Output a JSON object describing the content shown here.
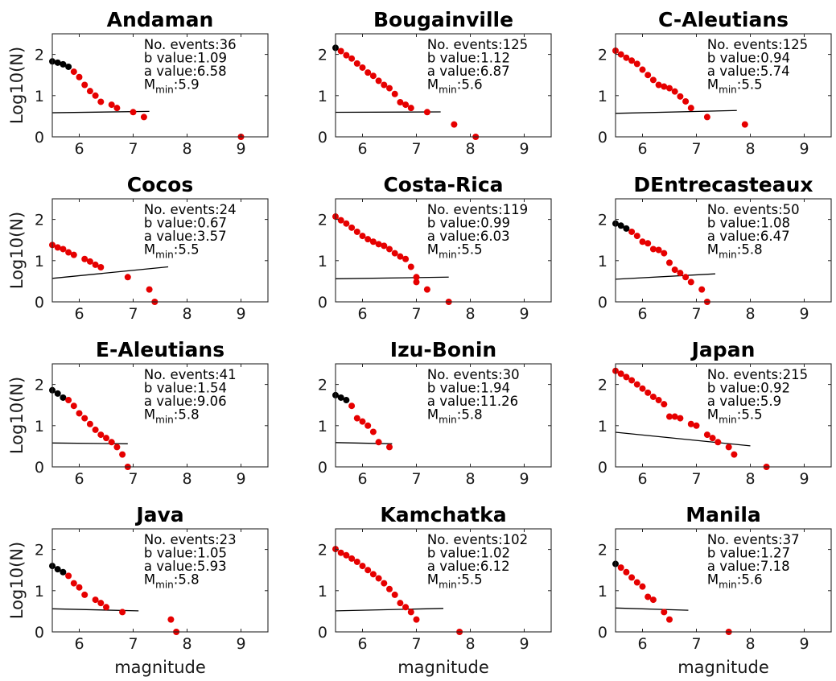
{
  "figure": {
    "x_axis_label": "magnitude",
    "y_axis_label": "Log10(N)",
    "labels": {
      "events": "No. events:",
      "b": "b value:",
      "a": "a value:",
      "mmin_main": "M",
      "mmin_sub": "min",
      "mmin_sep": ":"
    },
    "colors": {
      "below_mmin": "#000000",
      "above_mmin": "#e60000",
      "fit": "#000000"
    }
  },
  "chart_data": [
    {
      "type": "scatter",
      "title": "Andaman",
      "n_events": "36",
      "b_value": "1.09",
      "a_value": "6.58",
      "mmin": "5.9",
      "xlim": [
        5.5,
        9.5
      ],
      "ylim": [
        0,
        2.5
      ],
      "xticks": [
        6,
        7,
        8,
        9
      ],
      "yticks": [
        0,
        1,
        2
      ],
      "points_below_mmin": [
        [
          5.5,
          1.83
        ],
        [
          5.6,
          1.8
        ],
        [
          5.7,
          1.76
        ],
        [
          5.8,
          1.7
        ]
      ],
      "points": [
        [
          5.9,
          1.58
        ],
        [
          6.0,
          1.45
        ],
        [
          6.1,
          1.26
        ],
        [
          6.2,
          1.11
        ],
        [
          6.3,
          1.0
        ],
        [
          6.4,
          0.85
        ],
        [
          6.6,
          0.78
        ],
        [
          6.7,
          0.7
        ],
        [
          7.0,
          0.6
        ],
        [
          7.2,
          0.48
        ],
        [
          9.0,
          0.0
        ]
      ],
      "fit_line": [
        [
          5.5,
          0.585
        ],
        [
          7.3,
          0.618
        ]
      ]
    },
    {
      "type": "scatter",
      "title": "Bougainville",
      "n_events": "125",
      "b_value": "1.12",
      "a_value": "6.87",
      "mmin": "5.6",
      "xlim": [
        5.5,
        9.5
      ],
      "ylim": [
        0,
        2.5
      ],
      "xticks": [
        6,
        7,
        8,
        9
      ],
      "yticks": [
        0,
        1,
        2
      ],
      "points_below_mmin": [
        [
          5.5,
          2.16
        ]
      ],
      "points": [
        [
          5.6,
          2.08
        ],
        [
          5.7,
          1.98
        ],
        [
          5.8,
          1.9
        ],
        [
          5.9,
          1.78
        ],
        [
          6.0,
          1.68
        ],
        [
          6.1,
          1.56
        ],
        [
          6.2,
          1.48
        ],
        [
          6.3,
          1.36
        ],
        [
          6.4,
          1.26
        ],
        [
          6.5,
          1.18
        ],
        [
          6.6,
          1.04
        ],
        [
          6.7,
          0.84
        ],
        [
          6.8,
          0.78
        ],
        [
          6.9,
          0.7
        ],
        [
          7.2,
          0.6
        ],
        [
          7.7,
          0.3
        ],
        [
          8.1,
          0.0
        ]
      ],
      "fit_line": [
        [
          5.5,
          0.595
        ],
        [
          7.45,
          0.605
        ]
      ]
    },
    {
      "type": "scatter",
      "title": "C-Aleutians",
      "n_events": "125",
      "b_value": "0.94",
      "a_value": "5.74",
      "mmin": "5.5",
      "xlim": [
        5.5,
        9.5
      ],
      "ylim": [
        0,
        2.5
      ],
      "xticks": [
        6,
        7,
        8,
        9
      ],
      "yticks": [
        0,
        1,
        2
      ],
      "points_below_mmin": [],
      "points": [
        [
          5.5,
          2.09
        ],
        [
          5.6,
          2.0
        ],
        [
          5.7,
          1.92
        ],
        [
          5.8,
          1.85
        ],
        [
          5.9,
          1.77
        ],
        [
          6.0,
          1.63
        ],
        [
          6.1,
          1.5
        ],
        [
          6.2,
          1.38
        ],
        [
          6.3,
          1.26
        ],
        [
          6.4,
          1.22
        ],
        [
          6.5,
          1.18
        ],
        [
          6.6,
          1.1
        ],
        [
          6.7,
          0.98
        ],
        [
          6.8,
          0.86
        ],
        [
          6.9,
          0.7
        ],
        [
          7.2,
          0.48
        ],
        [
          7.9,
          0.3
        ]
      ],
      "fit_line": [
        [
          5.5,
          0.57
        ],
        [
          7.75,
          0.64
        ]
      ]
    },
    {
      "type": "scatter",
      "title": "Cocos",
      "n_events": "24",
      "b_value": "0.67",
      "a_value": "3.57",
      "mmin": "5.5",
      "xlim": [
        5.5,
        9.5
      ],
      "ylim": [
        0,
        2.5
      ],
      "xticks": [
        6,
        7,
        8,
        9
      ],
      "yticks": [
        0,
        1,
        2
      ],
      "points_below_mmin": [],
      "points": [
        [
          5.5,
          1.38
        ],
        [
          5.6,
          1.32
        ],
        [
          5.7,
          1.28
        ],
        [
          5.8,
          1.2
        ],
        [
          5.9,
          1.14
        ],
        [
          6.1,
          1.04
        ],
        [
          6.2,
          0.98
        ],
        [
          6.3,
          0.9
        ],
        [
          6.4,
          0.84
        ],
        [
          6.9,
          0.6
        ],
        [
          7.3,
          0.3
        ],
        [
          7.4,
          0.0
        ]
      ],
      "fit_line": [
        [
          5.5,
          0.57
        ],
        [
          7.65,
          0.85
        ]
      ]
    },
    {
      "type": "scatter",
      "title": "Costa-Rica",
      "n_events": "119",
      "b_value": "0.99",
      "a_value": "6.03",
      "mmin": "5.5",
      "xlim": [
        5.5,
        9.5
      ],
      "ylim": [
        0,
        2.5
      ],
      "xticks": [
        6,
        7,
        8,
        9
      ],
      "yticks": [
        0,
        1,
        2
      ],
      "points_below_mmin": [],
      "points": [
        [
          5.5,
          2.07
        ],
        [
          5.6,
          1.98
        ],
        [
          5.7,
          1.9
        ],
        [
          5.8,
          1.8
        ],
        [
          5.9,
          1.7
        ],
        [
          6.0,
          1.6
        ],
        [
          6.1,
          1.52
        ],
        [
          6.2,
          1.46
        ],
        [
          6.3,
          1.4
        ],
        [
          6.4,
          1.36
        ],
        [
          6.5,
          1.28
        ],
        [
          6.6,
          1.18
        ],
        [
          6.7,
          1.1
        ],
        [
          6.8,
          1.04
        ],
        [
          6.9,
          0.85
        ],
        [
          7.0,
          0.6
        ],
        [
          7.0,
          0.48
        ],
        [
          7.2,
          0.3
        ],
        [
          7.6,
          0.0
        ]
      ],
      "fit_line": [
        [
          5.5,
          0.56
        ],
        [
          7.6,
          0.6
        ]
      ]
    },
    {
      "type": "scatter",
      "title": "DEntrecasteaux",
      "n_events": "50",
      "b_value": "1.08",
      "a_value": "6.47",
      "mmin": "5.8",
      "xlim": [
        5.5,
        9.5
      ],
      "ylim": [
        0,
        2.5
      ],
      "xticks": [
        6,
        7,
        8,
        9
      ],
      "yticks": [
        0,
        1,
        2
      ],
      "points_below_mmin": [
        [
          5.5,
          1.9
        ],
        [
          5.6,
          1.85
        ],
        [
          5.7,
          1.78
        ]
      ],
      "points": [
        [
          5.8,
          1.7
        ],
        [
          5.9,
          1.6
        ],
        [
          6.0,
          1.46
        ],
        [
          6.1,
          1.42
        ],
        [
          6.2,
          1.28
        ],
        [
          6.3,
          1.26
        ],
        [
          6.4,
          1.18
        ],
        [
          6.5,
          0.95
        ],
        [
          6.6,
          0.78
        ],
        [
          6.7,
          0.7
        ],
        [
          6.8,
          0.6
        ],
        [
          6.9,
          0.48
        ],
        [
          7.1,
          0.3
        ],
        [
          7.2,
          0.0
        ]
      ],
      "fit_line": [
        [
          5.5,
          0.55
        ],
        [
          7.35,
          0.68
        ]
      ]
    },
    {
      "type": "scatter",
      "title": "E-Aleutians",
      "n_events": "41",
      "b_value": "1.54",
      "a_value": "9.06",
      "mmin": "5.8",
      "xlim": [
        5.5,
        9.5
      ],
      "ylim": [
        0,
        2.5
      ],
      "xticks": [
        6,
        7,
        8,
        9
      ],
      "yticks": [
        0,
        1,
        2
      ],
      "points_below_mmin": [
        [
          5.5,
          1.86
        ],
        [
          5.6,
          1.78
        ],
        [
          5.7,
          1.68
        ]
      ],
      "points": [
        [
          5.8,
          1.62
        ],
        [
          5.9,
          1.48
        ],
        [
          6.0,
          1.3
        ],
        [
          6.1,
          1.18
        ],
        [
          6.2,
          1.04
        ],
        [
          6.3,
          0.9
        ],
        [
          6.4,
          0.78
        ],
        [
          6.5,
          0.7
        ],
        [
          6.6,
          0.6
        ],
        [
          6.7,
          0.48
        ],
        [
          6.8,
          0.3
        ],
        [
          6.9,
          0.0
        ]
      ],
      "fit_line": [
        [
          5.5,
          0.58
        ],
        [
          6.9,
          0.56
        ]
      ]
    },
    {
      "type": "scatter",
      "title": "Izu-Bonin",
      "n_events": "30",
      "b_value": "1.94",
      "a_value": "11.26",
      "mmin": "5.8",
      "xlim": [
        5.5,
        9.5
      ],
      "ylim": [
        0,
        2.5
      ],
      "xticks": [
        6,
        7,
        8,
        9
      ],
      "yticks": [
        0,
        1,
        2
      ],
      "points_below_mmin": [
        [
          5.5,
          1.74
        ],
        [
          5.6,
          1.68
        ],
        [
          5.7,
          1.62
        ]
      ],
      "points": [
        [
          5.8,
          1.48
        ],
        [
          5.9,
          1.18
        ],
        [
          6.0,
          1.1
        ],
        [
          6.1,
          1.0
        ],
        [
          6.2,
          0.85
        ],
        [
          6.3,
          0.6
        ],
        [
          6.5,
          0.48
        ]
      ],
      "fit_line": [
        [
          5.5,
          0.59
        ],
        [
          6.55,
          0.56
        ]
      ]
    },
    {
      "type": "scatter",
      "title": "Japan",
      "n_events": "215",
      "b_value": "0.92",
      "a_value": "5.9",
      "mmin": "5.5",
      "xlim": [
        5.5,
        9.5
      ],
      "ylim": [
        0,
        2.5
      ],
      "xticks": [
        6,
        7,
        8,
        9
      ],
      "yticks": [
        0,
        1,
        2
      ],
      "points_below_mmin": [],
      "points": [
        [
          5.5,
          2.33
        ],
        [
          5.6,
          2.26
        ],
        [
          5.7,
          2.18
        ],
        [
          5.8,
          2.1
        ],
        [
          5.9,
          2.0
        ],
        [
          6.0,
          1.9
        ],
        [
          6.1,
          1.8
        ],
        [
          6.2,
          1.7
        ],
        [
          6.3,
          1.62
        ],
        [
          6.4,
          1.52
        ],
        [
          6.5,
          1.22
        ],
        [
          6.6,
          1.22
        ],
        [
          6.7,
          1.18
        ],
        [
          6.9,
          1.04
        ],
        [
          7.0,
          1.0
        ],
        [
          7.2,
          0.78
        ],
        [
          7.3,
          0.7
        ],
        [
          7.4,
          0.6
        ],
        [
          7.6,
          0.48
        ],
        [
          7.7,
          0.3
        ],
        [
          8.3,
          0.0
        ]
      ],
      "fit_line": [
        [
          5.5,
          0.84
        ],
        [
          8.0,
          0.51
        ]
      ]
    },
    {
      "type": "scatter",
      "title": "Java",
      "n_events": "23",
      "b_value": "1.05",
      "a_value": "5.93",
      "mmin": "5.8",
      "xlim": [
        5.5,
        9.5
      ],
      "ylim": [
        0,
        2.5
      ],
      "xticks": [
        6,
        7,
        8,
        9
      ],
      "yticks": [
        0,
        1,
        2
      ],
      "points_below_mmin": [
        [
          5.5,
          1.6
        ],
        [
          5.6,
          1.52
        ],
        [
          5.7,
          1.45
        ]
      ],
      "points": [
        [
          5.8,
          1.36
        ],
        [
          5.9,
          1.18
        ],
        [
          6.0,
          1.08
        ],
        [
          6.1,
          0.9
        ],
        [
          6.3,
          0.78
        ],
        [
          6.4,
          0.7
        ],
        [
          6.5,
          0.6
        ],
        [
          6.8,
          0.48
        ],
        [
          7.7,
          0.3
        ],
        [
          7.8,
          0.0
        ]
      ],
      "fit_line": [
        [
          5.5,
          0.56
        ],
        [
          7.1,
          0.51
        ]
      ]
    },
    {
      "type": "scatter",
      "title": "Kamchatka",
      "n_events": "102",
      "b_value": "1.02",
      "a_value": "6.12",
      "mmin": "5.5",
      "xlim": [
        5.5,
        9.5
      ],
      "ylim": [
        0,
        2.5
      ],
      "xticks": [
        6,
        7,
        8,
        9
      ],
      "yticks": [
        0,
        1,
        2
      ],
      "points_below_mmin": [],
      "points": [
        [
          5.5,
          2.01
        ],
        [
          5.6,
          1.92
        ],
        [
          5.7,
          1.86
        ],
        [
          5.8,
          1.78
        ],
        [
          5.9,
          1.7
        ],
        [
          6.0,
          1.6
        ],
        [
          6.1,
          1.5
        ],
        [
          6.2,
          1.4
        ],
        [
          6.3,
          1.3
        ],
        [
          6.4,
          1.18
        ],
        [
          6.5,
          1.04
        ],
        [
          6.6,
          0.9
        ],
        [
          6.7,
          0.7
        ],
        [
          6.8,
          0.6
        ],
        [
          6.9,
          0.48
        ],
        [
          7.0,
          0.3
        ],
        [
          7.8,
          0.0
        ]
      ],
      "fit_line": [
        [
          5.5,
          0.51
        ],
        [
          7.5,
          0.57
        ]
      ]
    },
    {
      "type": "scatter",
      "title": "Manila",
      "n_events": "37",
      "b_value": "1.27",
      "a_value": "7.18",
      "mmin": "5.6",
      "xlim": [
        5.5,
        9.5
      ],
      "ylim": [
        0,
        2.5
      ],
      "xticks": [
        6,
        7,
        8,
        9
      ],
      "yticks": [
        0,
        1,
        2
      ],
      "points_below_mmin": [
        [
          5.5,
          1.65
        ]
      ],
      "points": [
        [
          5.6,
          1.56
        ],
        [
          5.7,
          1.45
        ],
        [
          5.8,
          1.32
        ],
        [
          5.9,
          1.2
        ],
        [
          6.0,
          1.1
        ],
        [
          6.1,
          0.85
        ],
        [
          6.2,
          0.78
        ],
        [
          6.4,
          0.48
        ],
        [
          6.5,
          0.3
        ],
        [
          7.6,
          0.0
        ]
      ],
      "fit_line": [
        [
          5.5,
          0.58
        ],
        [
          6.85,
          0.525
        ]
      ]
    }
  ]
}
